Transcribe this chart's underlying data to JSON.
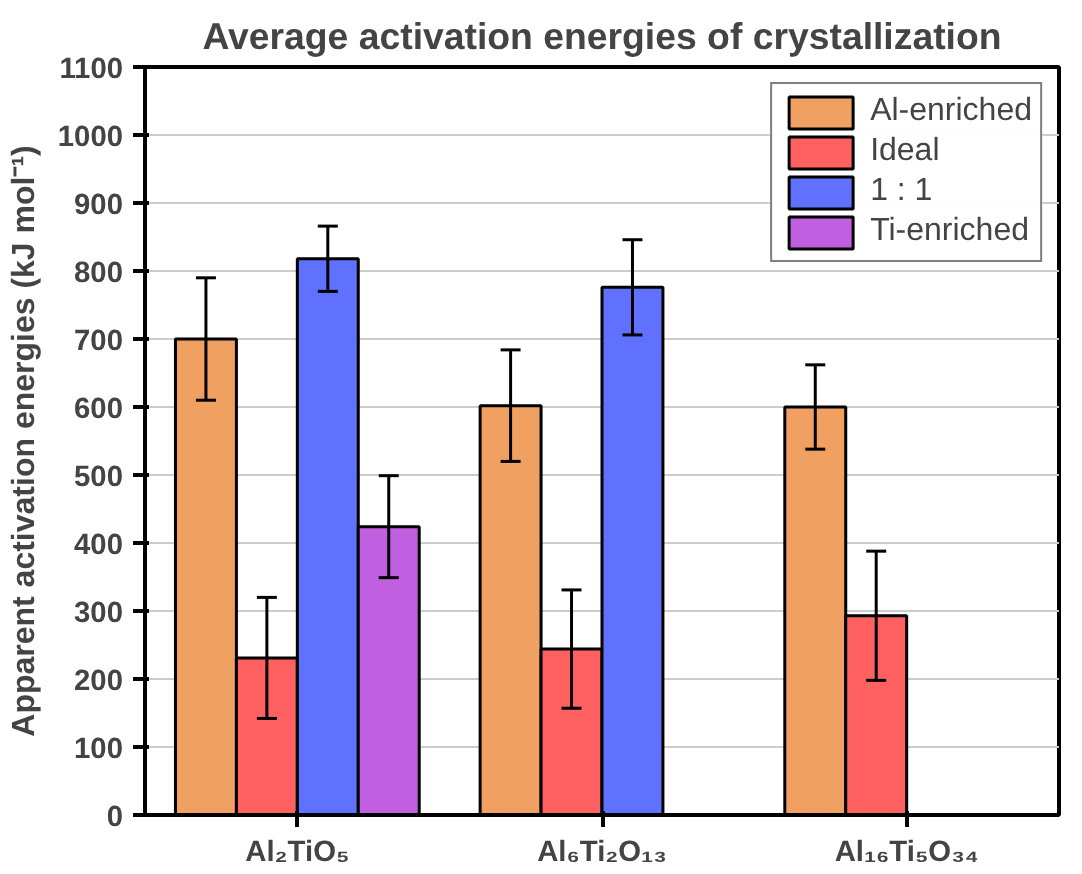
{
  "chart_data": {
    "type": "bar",
    "title": "Average activation energies of crystallization",
    "ylabel": "Apparent activation energies (kJ mol⁻¹)",
    "categories": [
      "Al₂TiO₅",
      "Al₆Ti₂O₁₃",
      "Al₁₆Ti₅O₃₄"
    ],
    "series": [
      {
        "name": "Al-enriched",
        "color": "#f0a060",
        "values": [
          700,
          602,
          600
        ],
        "errors": [
          90,
          82,
          62
        ]
      },
      {
        "name": "Ideal",
        "color": "#ff6060",
        "values": [
          231,
          244,
          293
        ],
        "errors": [
          89,
          87,
          95
        ]
      },
      {
        "name": "1 : 1",
        "color": "#6070ff",
        "values": [
          818,
          776,
          null
        ],
        "errors": [
          48,
          70,
          null
        ]
      },
      {
        "name": "Ti-enriched",
        "color": "#c060e0",
        "values": [
          424,
          null,
          null
        ],
        "errors": [
          75,
          null,
          null
        ]
      }
    ],
    "ylim": [
      0,
      1100
    ],
    "yticks": [
      0,
      100,
      200,
      300,
      400,
      500,
      600,
      700,
      800,
      900,
      1000,
      1100
    ],
    "grid": "y",
    "legend": "top right"
  }
}
